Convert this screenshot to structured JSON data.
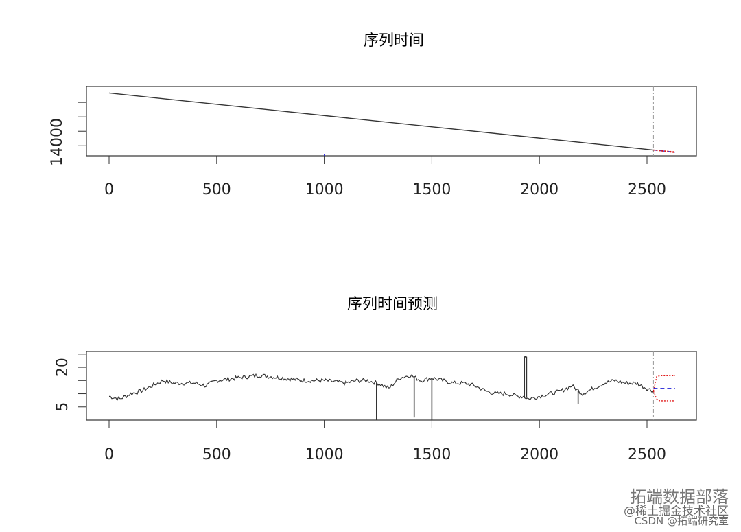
{
  "chart_data": [
    {
      "type": "line",
      "title": "序列时间",
      "xlim": [
        0,
        2630
      ],
      "ylim": [
        13300,
        18100
      ],
      "x_ticks": [
        "0",
        "500",
        "1000",
        "1500",
        "2000",
        "2500"
      ],
      "y_tick_label": "14000",
      "forecast_start": 2530,
      "series": [
        {
          "role": "observed",
          "x": [
            0,
            2530
          ],
          "y": [
            17650,
            13700
          ]
        },
        {
          "role": "forecast-mean",
          "x": [
            2530,
            2630
          ],
          "y": [
            13700,
            13550
          ]
        },
        {
          "role": "forecast-upper",
          "x": [
            2530,
            2630
          ],
          "y": [
            13710,
            13580
          ]
        },
        {
          "role": "forecast-lower",
          "x": [
            2530,
            2630
          ],
          "y": [
            13690,
            13520
          ]
        }
      ],
      "colors": {
        "observed": "#333333",
        "forecast_mean": "#1f1fd6",
        "forecast_interval": "#e01a1a",
        "forecast_line": "#999999"
      }
    },
    {
      "type": "line",
      "title": "序列时间预测",
      "xlim": [
        0,
        2630
      ],
      "ylim": [
        0,
        26
      ],
      "y_ticks": [
        "5",
        "20"
      ],
      "y_tick_values": [
        5,
        20
      ],
      "x_ticks": [
        "0",
        "500",
        "1000",
        "1500",
        "2000",
        "2500"
      ],
      "forecast_start": 2530,
      "observed_points": [
        [
          0,
          9
        ],
        [
          50,
          8
        ],
        [
          100,
          10
        ],
        [
          150,
          11
        ],
        [
          200,
          13
        ],
        [
          250,
          15
        ],
        [
          300,
          14
        ],
        [
          350,
          14
        ],
        [
          400,
          14
        ],
        [
          450,
          13
        ],
        [
          500,
          15
        ],
        [
          600,
          16
        ],
        [
          700,
          17
        ],
        [
          800,
          16
        ],
        [
          900,
          15
        ],
        [
          1000,
          15
        ],
        [
          1100,
          14
        ],
        [
          1150,
          15
        ],
        [
          1200,
          15
        ],
        [
          1250,
          14
        ],
        [
          1300,
          12
        ],
        [
          1350,
          16
        ],
        [
          1400,
          17
        ],
        [
          1450,
          15
        ],
        [
          1500,
          16
        ],
        [
          1550,
          15
        ],
        [
          1600,
          14
        ],
        [
          1650,
          14
        ],
        [
          1700,
          13
        ],
        [
          1750,
          11
        ],
        [
          1800,
          10
        ],
        [
          1850,
          10
        ],
        [
          1900,
          9
        ],
        [
          1925,
          9
        ],
        [
          1950,
          8
        ],
        [
          2000,
          9
        ],
        [
          2050,
          10
        ],
        [
          2100,
          11
        ],
        [
          2150,
          13
        ],
        [
          2200,
          10
        ],
        [
          2250,
          12
        ],
        [
          2300,
          14
        ],
        [
          2350,
          15
        ],
        [
          2400,
          14
        ],
        [
          2450,
          14
        ],
        [
          2500,
          12
        ],
        [
          2530,
          11
        ]
      ],
      "spikes": [
        {
          "x": 1243,
          "to": 0
        },
        {
          "x": 1418,
          "to": 1
        },
        {
          "x": 1500,
          "to": 0
        },
        {
          "x": 1930,
          "to": 24
        },
        {
          "x": 1940,
          "to": 24
        },
        {
          "x": 2180,
          "to": 6
        }
      ],
      "forecast": {
        "x": [
          2530,
          2545,
          2560,
          2630
        ],
        "mean": [
          12,
          12,
          12,
          12
        ],
        "upper": [
          11,
          16.5,
          16.8,
          16.8
        ],
        "lower": [
          11,
          8,
          7.3,
          7.3
        ]
      },
      "colors": {
        "observed": "#333333",
        "forecast_mean": "#1f1fd6",
        "forecast_interval": "#e01a1a",
        "forecast_line": "#999999"
      }
    }
  ],
  "watermark": {
    "line1": "拓端数据部落",
    "line2": "@稀土掘金技术社区",
    "line3": "CSDN @拓端研究室"
  }
}
